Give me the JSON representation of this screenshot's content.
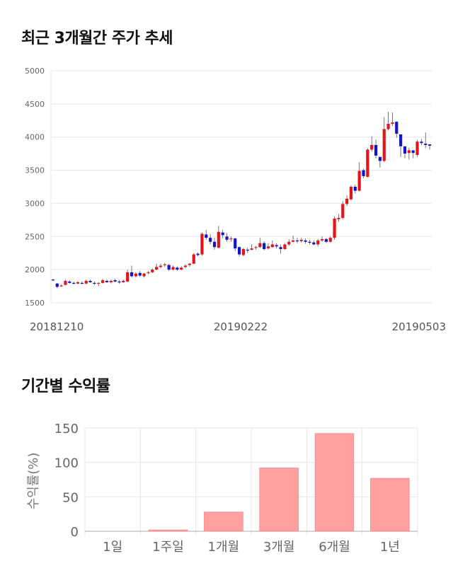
{
  "colors": {
    "up": "#e0151d",
    "down": "#1515c8",
    "wick": "#555555",
    "bar": "#ff9f9f",
    "bar_stroke": "#e87e7e",
    "grid": "#e6e6e6"
  },
  "titles": {
    "price": "최근 3개월간 주가 추세",
    "returns": "기간별 수익률"
  },
  "chart_data": [
    {
      "type": "candlestick",
      "title": "최근 3개월간 주가 추세",
      "y_ticks": [
        "5000",
        "4500",
        "4000",
        "3500",
        "3000",
        "2500",
        "2000",
        "1500"
      ],
      "ylim": [
        1500,
        5000
      ],
      "x_ticks": [
        "20181210",
        "20190222",
        "20190503"
      ],
      "grid": true,
      "candles": [
        [
          1850,
          1840,
          1860,
          1830
        ],
        [
          1790,
          1740,
          1800,
          1720
        ],
        [
          1750,
          1760,
          1780,
          1740
        ],
        [
          1770,
          1830,
          1850,
          1760
        ],
        [
          1820,
          1800,
          1840,
          1790
        ],
        [
          1800,
          1790,
          1820,
          1780
        ],
        [
          1790,
          1810,
          1830,
          1780
        ],
        [
          1800,
          1790,
          1820,
          1780
        ],
        [
          1790,
          1830,
          1850,
          1780
        ],
        [
          1830,
          1810,
          1850,
          1800
        ],
        [
          1800,
          1790,
          1820,
          1770
        ],
        [
          1790,
          1800,
          1810,
          1750
        ],
        [
          1800,
          1840,
          1860,
          1790
        ],
        [
          1830,
          1810,
          1850,
          1800
        ],
        [
          1810,
          1830,
          1850,
          1790
        ],
        [
          1840,
          1820,
          1860,
          1810
        ],
        [
          1820,
          1810,
          1840,
          1790
        ],
        [
          1810,
          1830,
          1850,
          1800
        ],
        [
          1820,
          1960,
          2000,
          1810
        ],
        [
          1960,
          1900,
          2060,
          1880
        ],
        [
          1900,
          1940,
          1960,
          1880
        ],
        [
          1950,
          1910,
          1980,
          1890
        ],
        [
          1900,
          1940,
          1950,
          1880
        ],
        [
          1950,
          1960,
          1980,
          1930
        ],
        [
          1960,
          2000,
          2020,
          1950
        ],
        [
          2000,
          2040,
          2090,
          1990
        ],
        [
          2040,
          2060,
          2090,
          2020
        ],
        [
          2070,
          2080,
          2100,
          2040
        ],
        [
          2070,
          2000,
          2090,
          1980
        ],
        [
          2000,
          2040,
          2060,
          1990
        ],
        [
          2030,
          2000,
          2050,
          1980
        ],
        [
          2000,
          2030,
          2050,
          1990
        ],
        [
          2040,
          2060,
          2080,
          2020
        ],
        [
          2070,
          2090,
          2100,
          2040
        ],
        [
          2090,
          2230,
          2250,
          2080
        ],
        [
          2240,
          2220,
          2260,
          2200
        ],
        [
          2230,
          2540,
          2560,
          2210
        ],
        [
          2530,
          2480,
          2600,
          2450
        ],
        [
          2480,
          2420,
          2540,
          2380
        ],
        [
          2420,
          2340,
          2480,
          2300
        ],
        [
          2330,
          2570,
          2660,
          2320
        ],
        [
          2560,
          2520,
          2600,
          2470
        ],
        [
          2500,
          2450,
          2550,
          2420
        ],
        [
          2460,
          2470,
          2500,
          2420
        ],
        [
          2470,
          2320,
          2480,
          2280
        ],
        [
          2340,
          2230,
          2350,
          2200
        ],
        [
          2220,
          2310,
          2330,
          2200
        ],
        [
          2300,
          2290,
          2330,
          2250
        ],
        [
          2300,
          2320,
          2380,
          2290
        ],
        [
          2330,
          2340,
          2360,
          2300
        ],
        [
          2340,
          2400,
          2480,
          2330
        ],
        [
          2400,
          2310,
          2430,
          2290
        ],
        [
          2320,
          2350,
          2400,
          2300
        ],
        [
          2340,
          2380,
          2440,
          2330
        ],
        [
          2370,
          2350,
          2400,
          2320
        ],
        [
          2340,
          2310,
          2380,
          2240
        ],
        [
          2310,
          2380,
          2400,
          2300
        ],
        [
          2380,
          2420,
          2460,
          2360
        ],
        [
          2420,
          2440,
          2510,
          2410
        ],
        [
          2440,
          2430,
          2480,
          2400
        ],
        [
          2430,
          2450,
          2480,
          2410
        ],
        [
          2440,
          2420,
          2470,
          2390
        ],
        [
          2420,
          2410,
          2450,
          2380
        ],
        [
          2410,
          2380,
          2440,
          2370
        ],
        [
          2380,
          2440,
          2460,
          2350
        ],
        [
          2440,
          2460,
          2500,
          2420
        ],
        [
          2460,
          2420,
          2480,
          2400
        ],
        [
          2420,
          2480,
          2500,
          2410
        ],
        [
          2480,
          2770,
          2800,
          2450
        ],
        [
          2760,
          2780,
          2840,
          2720
        ],
        [
          2780,
          2990,
          3030,
          2760
        ],
        [
          2990,
          3070,
          3120,
          2960
        ],
        [
          3060,
          3250,
          3270,
          3040
        ],
        [
          3250,
          3190,
          3280,
          3150
        ],
        [
          3190,
          3490,
          3620,
          3180
        ],
        [
          3500,
          3410,
          3520,
          3380
        ],
        [
          3400,
          3810,
          3830,
          3390
        ],
        [
          3810,
          3880,
          4010,
          3780
        ],
        [
          3880,
          3720,
          3960,
          3680
        ],
        [
          3700,
          3640,
          3700,
          3540
        ],
        [
          3640,
          4120,
          4300,
          3620
        ],
        [
          4120,
          4200,
          4380,
          4100
        ],
        [
          4200,
          4220,
          4370,
          4170
        ],
        [
          4230,
          4050,
          4240,
          3990
        ],
        [
          4040,
          3860,
          4040,
          3700
        ],
        [
          3860,
          3750,
          3840,
          3680
        ],
        [
          3760,
          3800,
          3840,
          3660
        ],
        [
          3800,
          3760,
          3800,
          3680
        ],
        [
          3730,
          3930,
          3960,
          3700
        ],
        [
          3930,
          3910,
          3970,
          3880
        ],
        [
          3900,
          3880,
          4070,
          3830
        ],
        [
          3890,
          3870,
          3890,
          3810
        ]
      ]
    },
    {
      "type": "bar",
      "categories": [
        "1일",
        "1주일",
        "1개월",
        "3개월",
        "6개월",
        "1년"
      ],
      "values": [
        0,
        2,
        28,
        92,
        142,
        77
      ],
      "ylabel": "수익률(%)",
      "y_ticks": [
        "150",
        "100",
        "50",
        "0"
      ],
      "ylim": [
        0,
        160
      ],
      "grid": true
    }
  ]
}
